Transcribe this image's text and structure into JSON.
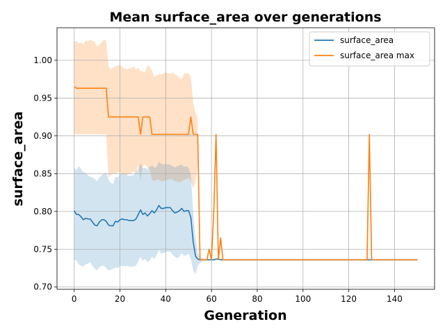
{
  "chart_data": {
    "type": "line",
    "title": "Mean surface_area over generations",
    "xlabel": "Generation",
    "ylabel": "surface_area",
    "xlim": [
      -7.5,
      157.5
    ],
    "ylim": [
      0.697,
      1.043
    ],
    "xticks": [
      0,
      20,
      40,
      60,
      80,
      100,
      120,
      140
    ],
    "yticks": [
      0.7,
      0.75,
      0.8,
      0.85,
      0.9,
      0.95,
      1.0
    ],
    "grid": true,
    "legend_position": "upper right",
    "series": [
      {
        "name": "surface_area",
        "color": "#1f77b4",
        "band_color": "#1f77b4",
        "x": [
          0,
          1,
          2,
          3,
          4,
          5,
          6,
          7,
          8,
          9,
          10,
          11,
          12,
          13,
          14,
          15,
          16,
          17,
          18,
          19,
          20,
          21,
          22,
          23,
          24,
          25,
          26,
          27,
          28,
          29,
          30,
          31,
          32,
          33,
          34,
          35,
          36,
          37,
          38,
          39,
          40,
          41,
          42,
          43,
          44,
          45,
          46,
          47,
          48,
          49,
          50,
          51,
          52,
          53,
          54,
          55,
          56,
          57,
          58,
          59,
          60,
          61,
          62,
          63,
          64,
          65,
          150
        ],
        "y": [
          0.801,
          0.796,
          0.796,
          0.793,
          0.789,
          0.791,
          0.79,
          0.79,
          0.786,
          0.782,
          0.781,
          0.786,
          0.789,
          0.789,
          0.787,
          0.782,
          0.781,
          0.781,
          0.787,
          0.786,
          0.789,
          0.79,
          0.789,
          0.789,
          0.788,
          0.788,
          0.788,
          0.79,
          0.796,
          0.802,
          0.796,
          0.798,
          0.794,
          0.797,
          0.801,
          0.798,
          0.802,
          0.808,
          0.804,
          0.804,
          0.805,
          0.805,
          0.805,
          0.801,
          0.798,
          0.799,
          0.801,
          0.804,
          0.8,
          0.801,
          0.801,
          0.792,
          0.76,
          0.741,
          0.737,
          0.736,
          0.736,
          0.736,
          0.736,
          0.736,
          0.736,
          0.736,
          0.737,
          0.737,
          0.736,
          0.736,
          0.736
        ],
        "y_upper": [
          0.858,
          0.855,
          0.86,
          0.856,
          0.852,
          0.851,
          0.848,
          0.846,
          0.845,
          0.843,
          0.84,
          0.845,
          0.848,
          0.85,
          0.852,
          0.842,
          0.838,
          0.836,
          0.846,
          0.845,
          0.85,
          0.851,
          0.85,
          0.848,
          0.847,
          0.847,
          0.848,
          0.852,
          0.856,
          0.864,
          0.857,
          0.858,
          0.856,
          0.859,
          0.861,
          0.858,
          0.859,
          0.866,
          0.863,
          0.862,
          0.863,
          0.862,
          0.862,
          0.86,
          0.858,
          0.86,
          0.861,
          0.862,
          0.859,
          0.86,
          0.858,
          0.848,
          0.8,
          0.765,
          0.745,
          0.74,
          0.738,
          0.737,
          0.737,
          0.737,
          0.737,
          0.737,
          0.738,
          0.738,
          0.737,
          0.737,
          0.737
        ],
        "y_lower": [
          0.736,
          0.735,
          0.73,
          0.728,
          0.727,
          0.73,
          0.731,
          0.733,
          0.728,
          0.724,
          0.722,
          0.726,
          0.728,
          0.728,
          0.725,
          0.722,
          0.723,
          0.724,
          0.726,
          0.725,
          0.728,
          0.728,
          0.727,
          0.728,
          0.727,
          0.727,
          0.727,
          0.728,
          0.734,
          0.74,
          0.735,
          0.737,
          0.733,
          0.735,
          0.74,
          0.737,
          0.742,
          0.749,
          0.744,
          0.745,
          0.746,
          0.747,
          0.747,
          0.743,
          0.74,
          0.738,
          0.74,
          0.745,
          0.741,
          0.742,
          0.744,
          0.737,
          0.722,
          0.717,
          0.728,
          0.732,
          0.734,
          0.735,
          0.735,
          0.735,
          0.735,
          0.735,
          0.736,
          0.736,
          0.735,
          0.735,
          0.735
        ]
      },
      {
        "name": "surface_area max",
        "color": "#ff7f0e",
        "band_color": "#ffdcbe",
        "x": [
          0,
          1,
          2,
          3,
          4,
          5,
          6,
          7,
          8,
          9,
          10,
          11,
          12,
          13,
          14,
          15,
          16,
          17,
          18,
          19,
          20,
          21,
          22,
          23,
          24,
          25,
          26,
          27,
          28,
          29,
          30,
          31,
          32,
          33,
          34,
          35,
          36,
          37,
          38,
          39,
          40,
          41,
          42,
          43,
          44,
          45,
          46,
          47,
          48,
          49,
          50,
          51,
          52,
          53,
          54,
          55,
          56,
          57,
          58,
          59,
          60,
          61,
          62,
          63,
          64,
          65,
          66,
          127,
          128,
          129,
          130,
          131,
          150
        ],
        "y": [
          0.965,
          0.963,
          0.963,
          0.963,
          0.963,
          0.963,
          0.963,
          0.963,
          0.963,
          0.963,
          0.963,
          0.963,
          0.963,
          0.963,
          0.963,
          0.925,
          0.925,
          0.925,
          0.925,
          0.925,
          0.925,
          0.925,
          0.925,
          0.925,
          0.925,
          0.925,
          0.925,
          0.925,
          0.925,
          0.902,
          0.925,
          0.925,
          0.925,
          0.925,
          0.902,
          0.902,
          0.902,
          0.902,
          0.902,
          0.902,
          0.902,
          0.902,
          0.902,
          0.902,
          0.902,
          0.902,
          0.902,
          0.902,
          0.902,
          0.902,
          0.902,
          0.925,
          0.902,
          0.902,
          0.902,
          0.736,
          0.736,
          0.736,
          0.736,
          0.75,
          0.736,
          0.8,
          0.902,
          0.736,
          0.765,
          0.736,
          0.736,
          0.736,
          0.736,
          0.902,
          0.736,
          0.736,
          0.736
        ],
        "band_x": [
          0,
          1,
          2,
          3,
          4,
          5,
          6,
          7,
          8,
          9,
          10,
          11,
          12,
          13,
          14,
          15,
          16,
          17,
          18,
          19,
          20,
          21,
          22,
          23,
          24,
          25,
          26,
          27,
          28,
          29,
          30,
          31,
          32,
          33,
          34,
          35,
          36,
          37,
          38,
          39,
          40,
          41,
          42,
          43,
          44,
          45,
          46,
          47,
          48,
          49,
          50,
          51,
          52,
          53,
          54
        ],
        "band_upper": [
          1.024,
          1.026,
          1.022,
          1.024,
          1.021,
          1.026,
          1.025,
          1.027,
          1.026,
          1.024,
          1.018,
          1.021,
          1.024,
          1.027,
          1.026,
          0.992,
          0.988,
          0.99,
          0.992,
          0.993,
          0.994,
          0.991,
          0.989,
          0.988,
          0.989,
          0.99,
          0.992,
          0.988,
          0.99,
          0.986,
          0.985,
          0.984,
          0.993,
          0.992,
          0.986,
          0.978,
          0.98,
          0.982,
          0.981,
          0.983,
          0.984,
          0.983,
          0.982,
          0.984,
          0.981,
          0.98,
          0.976,
          0.975,
          0.983,
          0.982,
          0.983,
          0.978,
          0.945,
          0.93,
          0.925
        ],
        "band_lower": [
          0.902,
          0.902,
          0.902,
          0.902,
          0.902,
          0.902,
          0.902,
          0.902,
          0.902,
          0.902,
          0.902,
          0.902,
          0.902,
          0.902,
          0.902,
          0.845,
          0.848,
          0.85,
          0.85,
          0.852,
          0.852,
          0.85,
          0.849,
          0.848,
          0.85,
          0.851,
          0.853,
          0.85,
          0.862,
          0.84,
          0.86,
          0.862,
          0.858,
          0.856,
          0.842,
          0.84,
          0.842,
          0.842,
          0.84,
          0.84,
          0.841,
          0.842,
          0.843,
          0.842,
          0.84,
          0.84,
          0.838,
          0.84,
          0.842,
          0.842,
          0.845,
          0.84,
          0.83,
          0.84,
          0.862
        ]
      }
    ]
  }
}
